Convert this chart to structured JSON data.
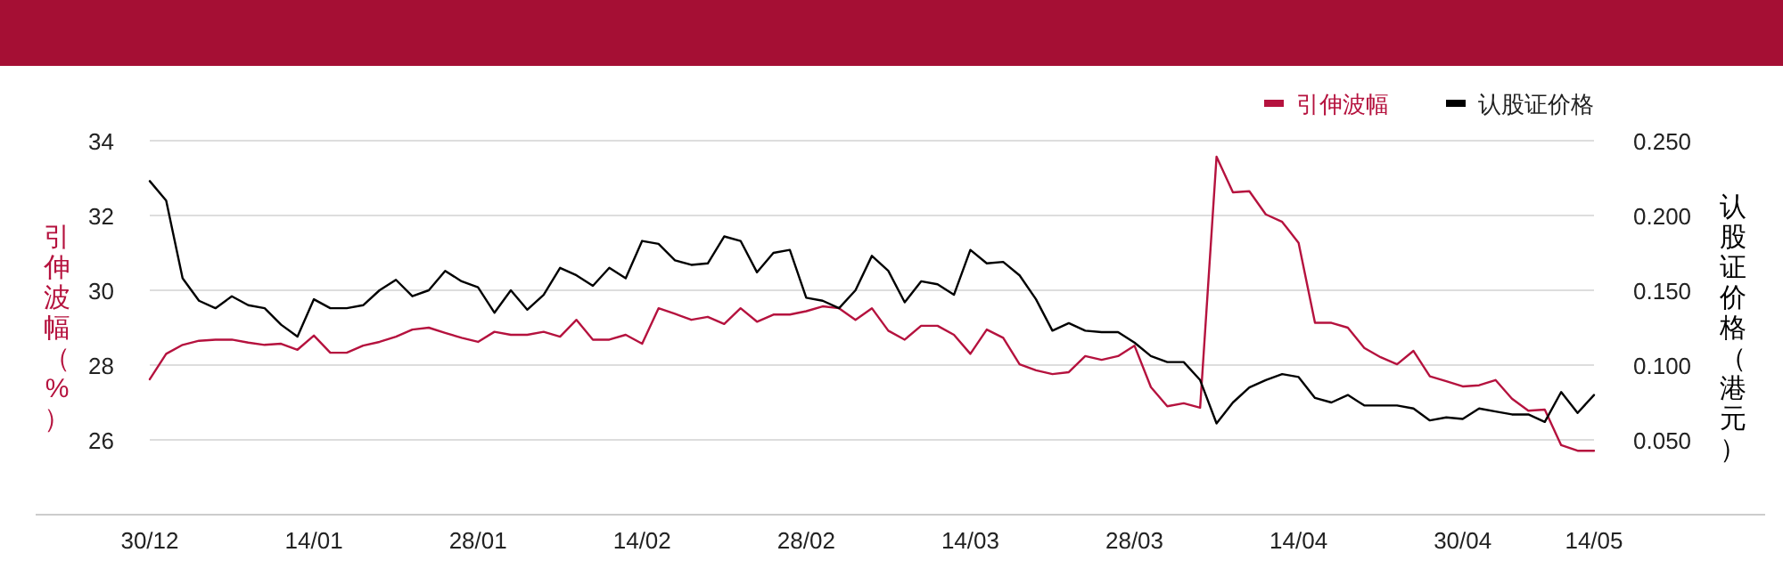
{
  "chart_data": {
    "type": "line",
    "categories": [
      "30/12",
      null,
      null,
      null,
      null,
      null,
      null,
      null,
      null,
      null,
      "14/01",
      null,
      null,
      null,
      null,
      null,
      null,
      null,
      null,
      null,
      "28/01",
      null,
      null,
      null,
      null,
      null,
      null,
      null,
      null,
      null,
      "14/02",
      null,
      null,
      null,
      null,
      null,
      null,
      null,
      null,
      null,
      "28/02",
      null,
      null,
      null,
      null,
      null,
      null,
      null,
      null,
      null,
      "14/03",
      null,
      null,
      null,
      null,
      null,
      null,
      null,
      null,
      null,
      "28/03",
      null,
      null,
      null,
      null,
      null,
      null,
      null,
      null,
      null,
      "14/04",
      null,
      null,
      null,
      null,
      null,
      null,
      null,
      null,
      null,
      "30/04",
      null,
      null,
      null,
      null,
      null,
      null,
      null,
      "14/05"
    ],
    "series": [
      {
        "name": "引伸波幅",
        "color": "#b5123e",
        "values": [
          27.62,
          28.3,
          28.54,
          28.65,
          28.68,
          28.68,
          28.6,
          28.54,
          28.57,
          28.41,
          28.79,
          28.33,
          28.33,
          28.52,
          28.62,
          28.76,
          28.95,
          29.0,
          28.86,
          28.73,
          28.62,
          28.89,
          28.81,
          28.81,
          28.89,
          28.76,
          29.21,
          28.68,
          28.68,
          28.81,
          28.57,
          29.52,
          29.37,
          29.21,
          29.29,
          29.1,
          29.52,
          29.16,
          29.35,
          29.35,
          29.44,
          29.57,
          29.52,
          29.21,
          29.52,
          28.92,
          28.68,
          29.05,
          29.05,
          28.81,
          28.3,
          28.95,
          28.73,
          28.02,
          27.86,
          27.76,
          27.81,
          28.24,
          28.14,
          28.24,
          28.52,
          27.41,
          26.9,
          26.98,
          26.86,
          33.57,
          32.62,
          32.65,
          32.03,
          31.83,
          31.27,
          29.13,
          29.13,
          29.0,
          28.46,
          28.21,
          28.02,
          28.38,
          27.7,
          27.57,
          27.43,
          27.46,
          27.6,
          27.1,
          26.78,
          26.81,
          25.86,
          25.71,
          25.71
        ]
      },
      {
        "name": "认股证价格",
        "color": "#000000",
        "axis": "y2",
        "values": [
          0.223,
          0.21,
          0.158,
          0.143,
          0.138,
          0.146,
          0.14,
          0.138,
          0.127,
          0.119,
          0.144,
          0.138,
          0.138,
          0.14,
          0.15,
          0.157,
          0.146,
          0.15,
          0.163,
          0.156,
          0.152,
          0.135,
          0.15,
          0.137,
          0.147,
          0.165,
          0.16,
          0.153,
          0.165,
          0.158,
          0.183,
          0.181,
          0.17,
          0.167,
          0.168,
          0.186,
          0.183,
          0.162,
          0.175,
          0.177,
          0.145,
          0.143,
          0.138,
          0.15,
          0.173,
          0.163,
          0.142,
          0.156,
          0.154,
          0.147,
          0.177,
          0.168,
          0.169,
          0.16,
          0.144,
          0.123,
          0.128,
          0.123,
          0.122,
          0.122,
          0.115,
          0.106,
          0.102,
          0.102,
          0.09,
          0.061,
          0.075,
          0.085,
          0.09,
          0.094,
          0.092,
          0.078,
          0.075,
          0.08,
          0.073,
          0.073,
          0.073,
          0.071,
          0.063,
          0.065,
          0.064,
          0.071,
          0.069,
          0.067,
          0.067,
          0.062,
          0.082,
          0.068,
          0.08
        ]
      }
    ],
    "ylabel": "引伸波幅（%）",
    "y2label": "认股证价格（港元）",
    "ylim": [
      24,
      34
    ],
    "yticks": [
      26,
      28,
      30,
      32,
      34
    ],
    "y2lim": [
      0,
      0.25
    ],
    "y2ticks": [
      {
        "value": 0.05,
        "label": "0.050"
      },
      {
        "value": 0.1,
        "label": "0.100"
      },
      {
        "value": 0.15,
        "label": "0.150"
      },
      {
        "value": 0.2,
        "label": "0.200"
      },
      {
        "value": 0.25,
        "label": "0.250"
      }
    ],
    "grid": "y",
    "legend": "top right"
  }
}
